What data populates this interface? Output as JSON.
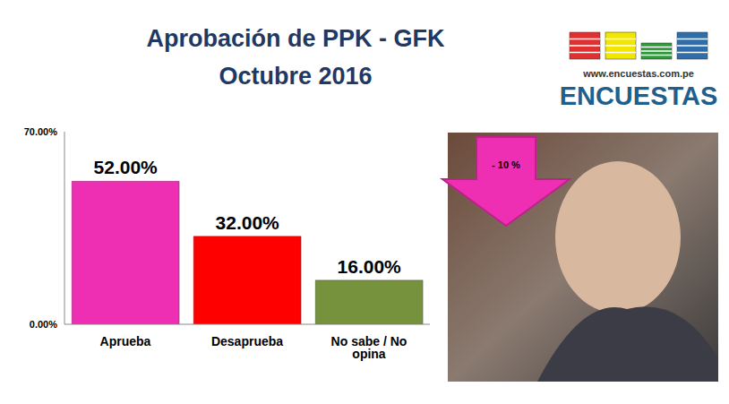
{
  "chart_data": {
    "type": "bar",
    "title": "Aprobación de PPK - GFK",
    "subtitle": "Octubre 2016",
    "categories": [
      "Aprueba",
      "Desaprueba",
      "No sabe / No opina"
    ],
    "values": [
      52,
      32,
      16
    ],
    "value_labels": [
      "52.00%",
      "32.00%",
      "16.00%"
    ],
    "colors": [
      "#ee2fb4",
      "#ff0000",
      "#76923c"
    ],
    "ylim": [
      0,
      70
    ],
    "yticks": [
      {
        "value": 0,
        "label": "0.00%"
      },
      {
        "value": 70,
        "label": "70.00%"
      }
    ],
    "grid": false,
    "data_labels": true,
    "annotations": [
      "www.encuestas.com.pe",
      "ENCUESTAS",
      "- 10 %"
    ]
  }
}
